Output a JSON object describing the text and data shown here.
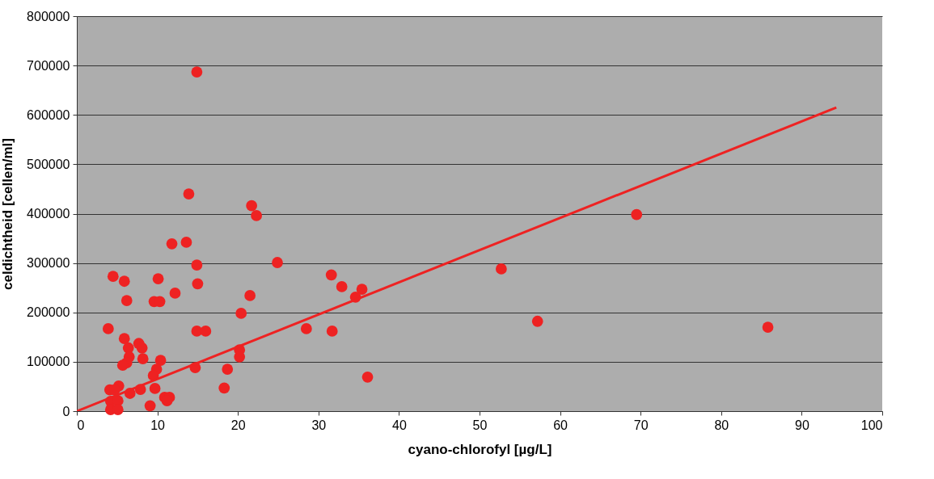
{
  "chart_data": {
    "type": "scatter",
    "xlabel": "cyano-chlorofyl [µg/L]",
    "ylabel": "celdichtheid [cellen/ml]",
    "xlim": [
      0,
      100
    ],
    "xticks": [
      0,
      10,
      20,
      30,
      40,
      50,
      60,
      70,
      80,
      90,
      100
    ],
    "ylim": [
      0,
      800000
    ],
    "yticks": [
      0,
      100000,
      200000,
      300000,
      400000,
      500000,
      600000,
      700000,
      800000
    ],
    "grid": "y",
    "marker": "circle",
    "series": [
      {
        "color": "#ee2222",
        "x": [
          14.9,
          13.9,
          21.7,
          22.3,
          11.8,
          13.6,
          14.9,
          24.9,
          4.5,
          5.9,
          10.1,
          52.7,
          31.6,
          32.9,
          35.4,
          34.6,
          15.0,
          6.2,
          9.6,
          10.3,
          12.2,
          21.5,
          20.4,
          3.9,
          14.9,
          16.0,
          28.5,
          31.7,
          57.2,
          69.5,
          85.8,
          5.9,
          7.7,
          8.1,
          6.4,
          6.5,
          8.2,
          10.4,
          6.2,
          5.7,
          14.7,
          18.7,
          9.9,
          20.2,
          20.2,
          9.5,
          36.1,
          5.2,
          4.1,
          4.7,
          7.9,
          9.7,
          6.6,
          18.3,
          4.2,
          5.1,
          10.9,
          11.5,
          11.2,
          9.1,
          4.2,
          5.1
        ],
        "values": [
          687000,
          440000,
          416000,
          396000,
          339000,
          342000,
          296000,
          301000,
          273000,
          263000,
          268000,
          288000,
          276000,
          252000,
          247000,
          231000,
          258000,
          224000,
          222000,
          222000,
          239000,
          234000,
          198000,
          167000,
          162000,
          162000,
          167000,
          162000,
          182000,
          398000,
          170000,
          147000,
          137000,
          128000,
          128000,
          110000,
          106000,
          103000,
          98000,
          93000,
          88000,
          85000,
          85000,
          124000,
          110000,
          72000,
          69000,
          51000,
          43000,
          43000,
          44000,
          46000,
          36000,
          47000,
          20000,
          21000,
          28000,
          28000,
          21000,
          11000,
          3000,
          3000
        ]
      },
      {
        "type": "line",
        "color": "#ee2222",
        "marker": "none",
        "x": [
          0,
          94.3
        ],
        "values": [
          0,
          615000
        ]
      }
    ]
  }
}
